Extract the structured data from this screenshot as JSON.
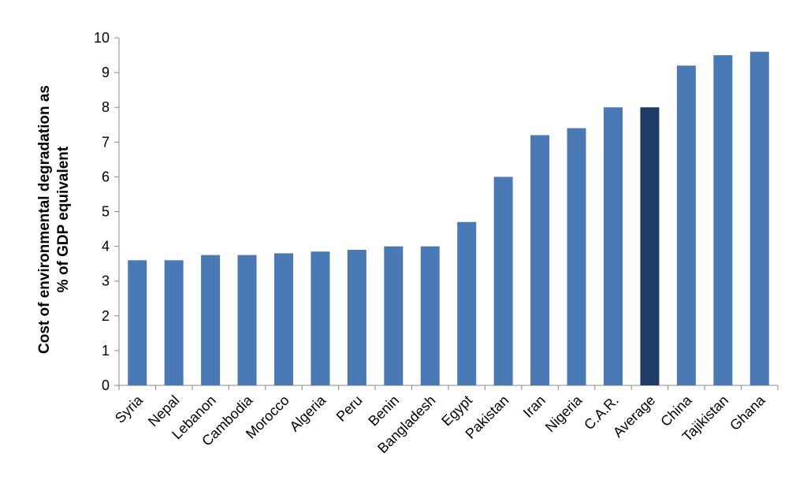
{
  "chart_data": {
    "type": "bar",
    "title": "",
    "xlabel": "",
    "ylabel": [
      "Cost of environmental degradation as",
      "% of GDP equivalent"
    ],
    "ylim": [
      0,
      10
    ],
    "yticks": [
      0,
      1,
      2,
      3,
      4,
      5,
      6,
      7,
      8,
      9,
      10
    ],
    "grid": false,
    "categories": [
      "Syria",
      "Nepal",
      "Lebanon",
      "Cambodia",
      "Morocco",
      "Algeria",
      "Peru",
      "Benin",
      "Bangladesh",
      "Egypt",
      "Pakistan",
      "Iran",
      "Nigeria",
      "C.A.R.",
      "Average",
      "China",
      "Tajikistan",
      "Ghana"
    ],
    "values": [
      3.6,
      3.6,
      3.75,
      3.75,
      3.8,
      3.85,
      3.9,
      4.0,
      4.0,
      4.7,
      6.0,
      7.2,
      7.4,
      8.0,
      8.0,
      9.2,
      9.5,
      9.6
    ],
    "highlight_category": "Average",
    "colors": {
      "bar": "#4a7ab5",
      "highlight": "#1f3c66",
      "axis": "#888888"
    }
  }
}
